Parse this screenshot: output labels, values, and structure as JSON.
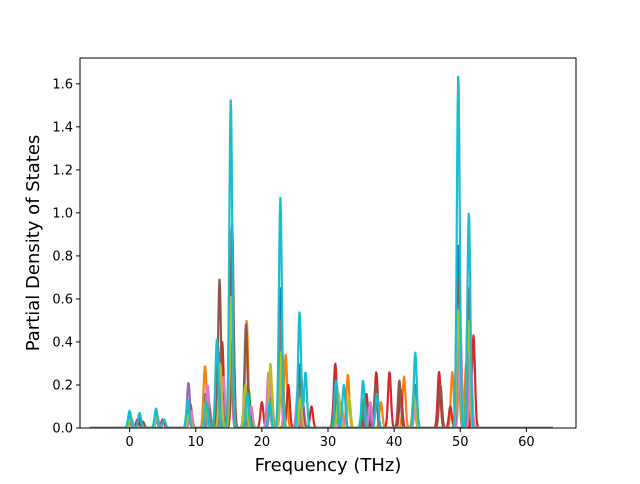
{
  "chart_data": {
    "type": "line",
    "xlabel": "Frequency (THz)",
    "ylabel": "Partial Density of States",
    "xlim": [
      -7.5,
      67.5
    ],
    "ylim": [
      0,
      1.72
    ],
    "x_ticks": [
      0,
      10,
      20,
      30,
      40,
      50,
      60
    ],
    "y_ticks": [
      0.0,
      0.2,
      0.4,
      0.6,
      0.8,
      1.0,
      1.2,
      1.4,
      1.6
    ],
    "x_tick_labels": [
      "0",
      "10",
      "20",
      "30",
      "40",
      "50",
      "60"
    ],
    "y_tick_labels": [
      "0.0",
      "0.2",
      "0.4",
      "0.6",
      "0.8",
      "1.0",
      "1.2",
      "1.4",
      "1.6"
    ],
    "grid": false,
    "legend": "none",
    "x_range": [
      -6,
      64
    ],
    "series": [
      {
        "color": "#1f77b4",
        "peaks": [
          [
            0,
            0.06
          ],
          [
            1.5,
            0.05
          ],
          [
            4,
            0.07
          ],
          [
            9,
            0.1
          ],
          [
            11.5,
            0.16
          ],
          [
            13.5,
            0.28
          ],
          [
            15.3,
            0.72
          ],
          [
            17.5,
            0.14
          ],
          [
            21.2,
            0.19
          ],
          [
            22.8,
            0.65
          ],
          [
            25.8,
            0.3
          ],
          [
            31.5,
            0.1
          ],
          [
            36,
            0.08
          ],
          [
            43,
            0.16
          ],
          [
            49.7,
            0.85
          ],
          [
            51.3,
            0.45
          ]
        ]
      },
      {
        "color": "#ff7f0e",
        "peaks": [
          [
            0.2,
            0.05
          ],
          [
            4,
            0.06
          ],
          [
            9,
            0.12
          ],
          [
            11.4,
            0.29
          ],
          [
            13.8,
            0.38
          ],
          [
            15.5,
            0.6
          ],
          [
            17.7,
            0.5
          ],
          [
            21.3,
            0.18
          ],
          [
            23.6,
            0.34
          ],
          [
            25.5,
            0.2
          ],
          [
            33,
            0.25
          ],
          [
            38,
            0.12
          ],
          [
            41.5,
            0.24
          ],
          [
            48.8,
            0.26
          ],
          [
            50.9,
            0.3
          ]
        ]
      },
      {
        "color": "#2ca02c",
        "peaks": [
          [
            0,
            0.04
          ],
          [
            4,
            0.05
          ],
          [
            9,
            0.08
          ],
          [
            12,
            0.12
          ],
          [
            14,
            0.22
          ],
          [
            15.3,
            0.45
          ],
          [
            18,
            0.18
          ],
          [
            21,
            0.21
          ],
          [
            22.9,
            0.46
          ],
          [
            25.7,
            0.22
          ],
          [
            31,
            0.18
          ],
          [
            35.5,
            0.14
          ],
          [
            43.2,
            0.2
          ],
          [
            49.9,
            0.5
          ],
          [
            51.4,
            0.34
          ]
        ]
      },
      {
        "color": "#d62728",
        "peaks": [
          [
            1.2,
            0.04
          ],
          [
            5,
            0.04
          ],
          [
            9.2,
            0.11
          ],
          [
            14,
            0.4
          ],
          [
            15.6,
            0.55
          ],
          [
            20,
            0.12
          ],
          [
            24,
            0.2
          ],
          [
            27.5,
            0.1
          ],
          [
            31.1,
            0.3
          ],
          [
            35.8,
            0.16
          ],
          [
            37.3,
            0.26
          ],
          [
            39.3,
            0.26
          ],
          [
            41,
            0.18
          ],
          [
            46.8,
            0.26
          ],
          [
            48.5,
            0.1
          ],
          [
            52,
            0.43
          ]
        ]
      },
      {
        "color": "#9467bd",
        "peaks": [
          [
            0.1,
            0.05
          ],
          [
            4,
            0.06
          ],
          [
            8.9,
            0.21
          ],
          [
            11.5,
            0.1
          ],
          [
            13.5,
            0.35
          ],
          [
            15.4,
            0.67
          ],
          [
            17.8,
            0.12
          ],
          [
            21.4,
            0.22
          ],
          [
            23,
            0.28
          ],
          [
            26.2,
            0.12
          ],
          [
            31.6,
            0.14
          ],
          [
            36.2,
            0.1
          ],
          [
            43,
            0.12
          ],
          [
            49.8,
            0.6
          ],
          [
            51.5,
            0.39
          ]
        ]
      },
      {
        "color": "#8c564b",
        "peaks": [
          [
            0,
            0.05
          ],
          [
            2,
            0.03
          ],
          [
            9.1,
            0.09
          ],
          [
            13.6,
            0.69
          ],
          [
            15.5,
            0.95
          ],
          [
            17.6,
            0.48
          ],
          [
            21.1,
            0.13
          ],
          [
            23,
            0.4
          ],
          [
            25.9,
            0.26
          ],
          [
            31.3,
            0.2
          ],
          [
            37.2,
            0.2
          ],
          [
            40.8,
            0.22
          ],
          [
            47,
            0.2
          ],
          [
            49.6,
            0.7
          ],
          [
            51.2,
            0.65
          ]
        ]
      },
      {
        "color": "#e377c2",
        "peaks": [
          [
            0.3,
            0.04
          ],
          [
            4.2,
            0.05
          ],
          [
            9.3,
            0.08
          ],
          [
            11.8,
            0.2
          ],
          [
            14.2,
            0.24
          ],
          [
            15.2,
            0.5
          ],
          [
            18.4,
            0.1
          ],
          [
            21,
            0.26
          ],
          [
            22.7,
            0.38
          ],
          [
            25.4,
            0.16
          ],
          [
            32,
            0.12
          ],
          [
            36.4,
            0.12
          ],
          [
            43.3,
            0.14
          ],
          [
            50,
            0.48
          ],
          [
            51.6,
            0.3
          ]
        ]
      },
      {
        "color": "#7f7f7f",
        "peaks": [
          [
            0,
            0.03
          ],
          [
            4,
            0.04
          ],
          [
            9,
            0.06
          ],
          [
            12,
            0.09
          ],
          [
            13.9,
            0.18
          ],
          [
            15.3,
            0.4
          ],
          [
            17.4,
            0.12
          ],
          [
            21.2,
            0.14
          ],
          [
            22.9,
            0.5
          ],
          [
            25.6,
            0.18
          ],
          [
            31.4,
            0.1
          ],
          [
            35.2,
            0.1
          ],
          [
            43.1,
            0.18
          ],
          [
            49.8,
            0.58
          ],
          [
            51.3,
            0.42
          ]
        ]
      },
      {
        "color": "#bcbd22",
        "peaks": [
          [
            0.1,
            0.04
          ],
          [
            4.1,
            0.05
          ],
          [
            9,
            0.07
          ],
          [
            11.5,
            0.12
          ],
          [
            13.7,
            0.3
          ],
          [
            15.4,
            0.62
          ],
          [
            17.5,
            0.2
          ],
          [
            21.3,
            0.3
          ],
          [
            23,
            0.36
          ],
          [
            25.8,
            0.14
          ],
          [
            31.6,
            0.16
          ],
          [
            33.2,
            0.14
          ],
          [
            43,
            0.15
          ],
          [
            49.7,
            0.55
          ],
          [
            51.2,
            0.5
          ]
        ]
      },
      {
        "color": "#17becf",
        "peaks": [
          [
            0,
            0.08
          ],
          [
            1.5,
            0.07
          ],
          [
            4,
            0.09
          ],
          [
            5.2,
            0.04
          ],
          [
            8.8,
            0.13
          ],
          [
            11.6,
            0.12
          ],
          [
            13.2,
            0.41
          ],
          [
            15.3,
            1.53
          ],
          [
            17.8,
            0.16
          ],
          [
            21.2,
            0.12
          ],
          [
            22.8,
            1.07
          ],
          [
            25.7,
            0.54
          ],
          [
            26.6,
            0.26
          ],
          [
            31.2,
            0.22
          ],
          [
            32.4,
            0.2
          ],
          [
            35.3,
            0.22
          ],
          [
            37.4,
            0.16
          ],
          [
            43.2,
            0.35
          ],
          [
            49.7,
            1.64
          ],
          [
            51.3,
            1.0
          ]
        ]
      }
    ]
  }
}
